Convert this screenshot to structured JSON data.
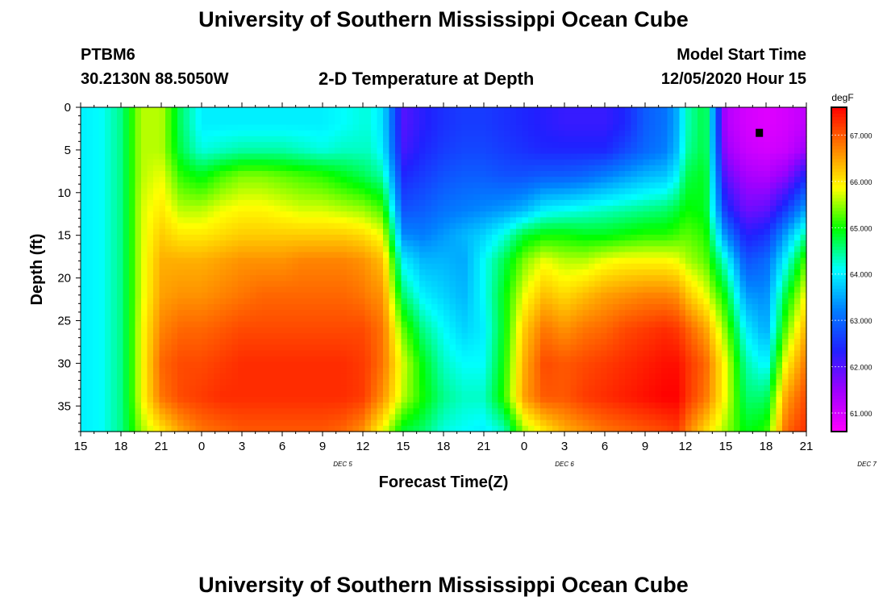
{
  "page": {
    "title": "University of Southern Mississippi Ocean Cube",
    "footer_title": "University of Southern Mississippi Ocean Cube",
    "station_id": "PTBM6",
    "station_coords": "30.2130N 88.5050W",
    "plot_title": "2-D Temperature at Depth",
    "model_start_label": "Model Start Time",
    "model_start_value": "12/05/2020 Hour 15"
  },
  "chart_data": {
    "type": "heatmap",
    "title": "2-D Temperature at Depth",
    "xlabel": "Forecast Time(Z)",
    "ylabel": "Depth (ft)",
    "colorbar_label": "degF",
    "x_ticks": [
      "15",
      "18",
      "21",
      "0",
      "3",
      "6",
      "9",
      "12",
      "15",
      "18",
      "21",
      "0",
      "3",
      "6",
      "9",
      "12",
      "15",
      "18",
      "21"
    ],
    "x_day_labels": [
      {
        "text": "DEC 5",
        "at_hour": 19.5
      },
      {
        "text": "DEC 6",
        "at_hour": 36
      },
      {
        "text": "DEC 7",
        "at_hour": 58.5
      }
    ],
    "x_range_hours": [
      0,
      54
    ],
    "y_ticks": [
      0,
      5,
      10,
      15,
      20,
      25,
      30,
      35
    ],
    "y_range_ft": [
      0,
      38
    ],
    "colorbar_ticks": [
      "61.000",
      "62.000",
      "63.000",
      "64.000",
      "65.000",
      "66.000",
      "67.000"
    ],
    "colorbar_range": [
      60.6,
      67.6
    ],
    "colormap": [
      "#ff00ff",
      "#a000ff",
      "#2020ff",
      "#0080ff",
      "#00ffff",
      "#00ff00",
      "#ffff00",
      "#ff8000",
      "#ff0000"
    ],
    "marker": {
      "hour": 50.5,
      "depth_ft": 3
    },
    "grid_hours": [
      0,
      1.5,
      3,
      3.7,
      4.5,
      6,
      7.5,
      9,
      10.5,
      12,
      13.5,
      15,
      16.5,
      18,
      19.5,
      21,
      21.5,
      22.5,
      24,
      25.5,
      27,
      28.5,
      30,
      31.5,
      33,
      34.5,
      36,
      37.5,
      39,
      40.5,
      42,
      43.5,
      44.5,
      45,
      46.5,
      48,
      49.5,
      51,
      52.5,
      54
    ],
    "grid_depths_ft": [
      0,
      2,
      5,
      8,
      12,
      15,
      18,
      22,
      26,
      30,
      34,
      38
    ],
    "values": [
      [
        64.0,
        64.0,
        64.0,
        64.0,
        64.0,
        64.0,
        64.0,
        64.0,
        64.0,
        64.0,
        64.0,
        64.0
      ],
      [
        64.1,
        64.1,
        64.1,
        64.1,
        64.1,
        64.1,
        64.1,
        64.1,
        64.1,
        64.1,
        64.1,
        64.1
      ],
      [
        64.5,
        64.5,
        64.5,
        64.5,
        64.5,
        64.5,
        64.5,
        64.5,
        64.5,
        64.5,
        64.5,
        64.5
      ],
      [
        65.0,
        65.0,
        65.0,
        65.0,
        65.0,
        65.0,
        65.0,
        65.0,
        65.0,
        65.0,
        65.0,
        64.9
      ],
      [
        65.6,
        65.6,
        65.6,
        65.6,
        65.7,
        65.7,
        65.7,
        65.7,
        65.8,
        65.8,
        65.8,
        65.5
      ],
      [
        65.6,
        65.6,
        65.6,
        65.8,
        66.0,
        66.2,
        66.4,
        66.5,
        66.7,
        66.9,
        66.8,
        66.0
      ],
      [
        64.6,
        64.6,
        64.7,
        65.1,
        65.6,
        66.0,
        66.4,
        66.6,
        66.9,
        67.1,
        67.1,
        66.5
      ],
      [
        64.0,
        64.0,
        64.2,
        64.9,
        65.6,
        66.0,
        66.4,
        66.6,
        66.9,
        67.1,
        67.2,
        66.8
      ],
      [
        64.0,
        64.0,
        64.3,
        65.2,
        65.8,
        66.1,
        66.5,
        66.7,
        67.0,
        67.2,
        67.3,
        66.9
      ],
      [
        64.0,
        64.0,
        64.4,
        65.4,
        65.9,
        66.2,
        66.6,
        66.8,
        67.1,
        67.3,
        67.3,
        67.0
      ],
      [
        64.0,
        64.0,
        64.4,
        65.4,
        65.9,
        66.2,
        66.6,
        66.9,
        67.1,
        67.3,
        67.3,
        67.0
      ],
      [
        64.0,
        64.0,
        64.4,
        65.3,
        65.8,
        66.2,
        66.6,
        66.9,
        67.1,
        67.3,
        67.3,
        67.0
      ],
      [
        64.0,
        64.0,
        64.3,
        65.2,
        65.7,
        66.2,
        66.7,
        66.9,
        67.1,
        67.3,
        67.3,
        67.0
      ],
      [
        64.0,
        64.0,
        64.2,
        65.1,
        65.7,
        66.2,
        66.7,
        66.9,
        67.1,
        67.3,
        67.3,
        67.0
      ],
      [
        64.1,
        64.1,
        64.3,
        64.9,
        65.6,
        66.2,
        66.7,
        66.9,
        67.1,
        67.3,
        67.3,
        66.9
      ],
      [
        64.2,
        64.2,
        64.3,
        64.7,
        65.5,
        66.1,
        66.6,
        66.8,
        67.1,
        67.2,
        67.2,
        66.6
      ],
      [
        64.2,
        64.2,
        64.3,
        64.6,
        65.4,
        66.0,
        66.5,
        66.7,
        67.0,
        67.1,
        67.0,
        66.3
      ],
      [
        63.9,
        63.9,
        64.0,
        64.4,
        65.2,
        65.8,
        66.3,
        66.6,
        66.8,
        66.8,
        66.6,
        65.8
      ],
      [
        62.0,
        62.0,
        62.1,
        62.4,
        62.8,
        63.3,
        64.0,
        64.6,
        65.3,
        65.7,
        65.6,
        64.8
      ],
      [
        62.3,
        62.3,
        62.4,
        62.6,
        62.9,
        63.2,
        63.6,
        64.0,
        64.5,
        64.9,
        65.0,
        64.6
      ],
      [
        62.5,
        62.5,
        62.6,
        62.8,
        63.1,
        63.4,
        63.6,
        63.8,
        64.1,
        64.3,
        64.5,
        64.2
      ],
      [
        62.6,
        62.6,
        62.7,
        62.9,
        63.2,
        63.6,
        63.5,
        63.6,
        63.8,
        64.1,
        64.3,
        64.1
      ],
      [
        62.6,
        62.6,
        62.7,
        62.9,
        63.3,
        63.8,
        64.1,
        64.1,
        64.0,
        64.1,
        64.3,
        64.0
      ],
      [
        62.5,
        62.5,
        62.6,
        62.8,
        63.4,
        64.2,
        64.7,
        64.9,
        64.9,
        65.0,
        65.1,
        64.3
      ],
      [
        62.4,
        62.4,
        62.5,
        62.8,
        63.6,
        64.8,
        65.4,
        65.8,
        66.2,
        66.4,
        66.5,
        65.5
      ],
      [
        62.3,
        62.3,
        62.4,
        62.9,
        64.0,
        65.0,
        65.8,
        66.3,
        66.8,
        67.1,
        67.0,
        66.0
      ],
      [
        62.2,
        62.2,
        62.4,
        62.9,
        64.1,
        65.0,
        65.6,
        66.1,
        66.6,
        67.0,
        67.0,
        66.4
      ],
      [
        62.2,
        62.2,
        62.4,
        63.0,
        64.2,
        64.9,
        65.6,
        66.3,
        66.8,
        67.1,
        67.2,
        66.6
      ],
      [
        62.2,
        62.2,
        62.4,
        63.2,
        64.3,
        64.9,
        65.8,
        66.5,
        66.9,
        67.2,
        67.3,
        66.8
      ],
      [
        62.4,
        62.4,
        62.7,
        63.4,
        64.4,
        65.0,
        65.9,
        66.6,
        67.1,
        67.3,
        67.4,
        66.9
      ],
      [
        62.9,
        62.9,
        63.0,
        63.6,
        64.5,
        65.1,
        65.9,
        66.7,
        67.2,
        67.4,
        67.5,
        67.0
      ],
      [
        63.1,
        63.1,
        63.2,
        63.7,
        64.6,
        65.1,
        65.9,
        66.7,
        67.3,
        67.5,
        67.6,
        67.1
      ],
      [
        63.6,
        63.6,
        63.7,
        64.1,
        64.8,
        65.2,
        65.8,
        66.6,
        67.2,
        67.5,
        67.6,
        67.2
      ],
      [
        64.3,
        64.3,
        64.4,
        64.7,
        65.0,
        65.3,
        65.6,
        66.3,
        67.0,
        67.3,
        67.3,
        66.8
      ],
      [
        64.8,
        64.8,
        64.8,
        64.9,
        64.9,
        65.1,
        65.3,
        65.8,
        66.5,
        66.9,
        66.8,
        66.1
      ],
      [
        61.3,
        61.3,
        61.5,
        61.9,
        62.5,
        63.3,
        64.2,
        64.9,
        65.4,
        65.8,
        65.8,
        65.5
      ],
      [
        61.0,
        61.0,
        61.1,
        61.4,
        61.8,
        62.3,
        62.8,
        63.4,
        64.0,
        64.4,
        64.6,
        64.9
      ],
      [
        60.9,
        60.9,
        61.0,
        61.3,
        61.9,
        62.5,
        63.0,
        63.3,
        63.5,
        64.0,
        64.6,
        65.1
      ],
      [
        61.0,
        61.0,
        61.1,
        61.6,
        62.6,
        63.5,
        64.1,
        64.8,
        65.3,
        65.9,
        66.5,
        66.9
      ],
      [
        61.2,
        61.2,
        61.5,
        62.4,
        63.5,
        64.5,
        65.3,
        65.9,
        66.4,
        66.8,
        67.1,
        67.3
      ]
    ]
  }
}
